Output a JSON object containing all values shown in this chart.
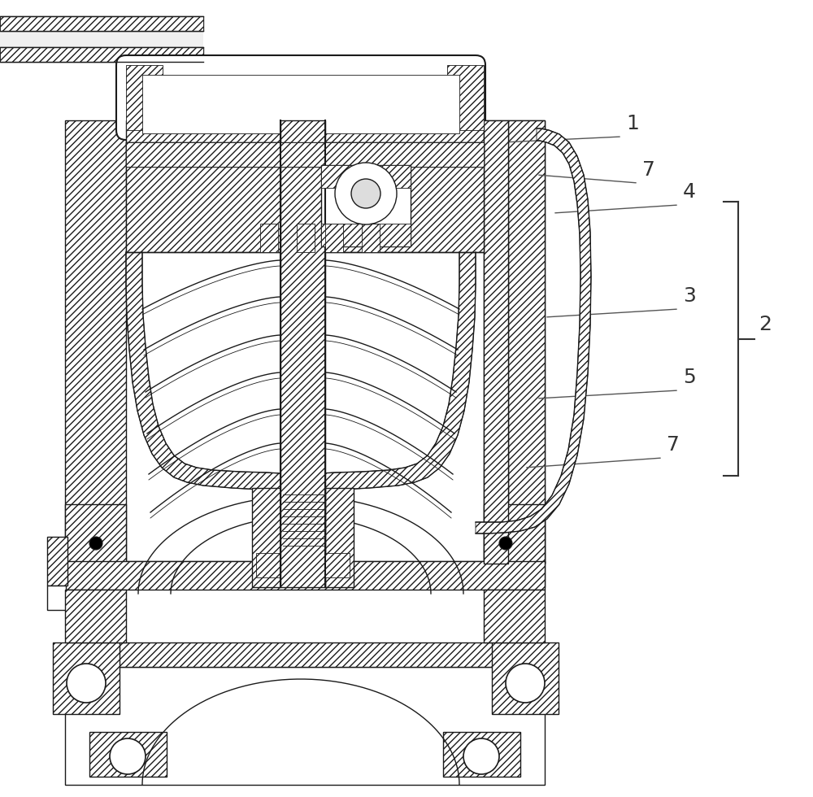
{
  "bg_color": "#ffffff",
  "lc": "#1a1a1a",
  "label_fs": 18,
  "label_color": "#333333",
  "hatch": "////"
}
